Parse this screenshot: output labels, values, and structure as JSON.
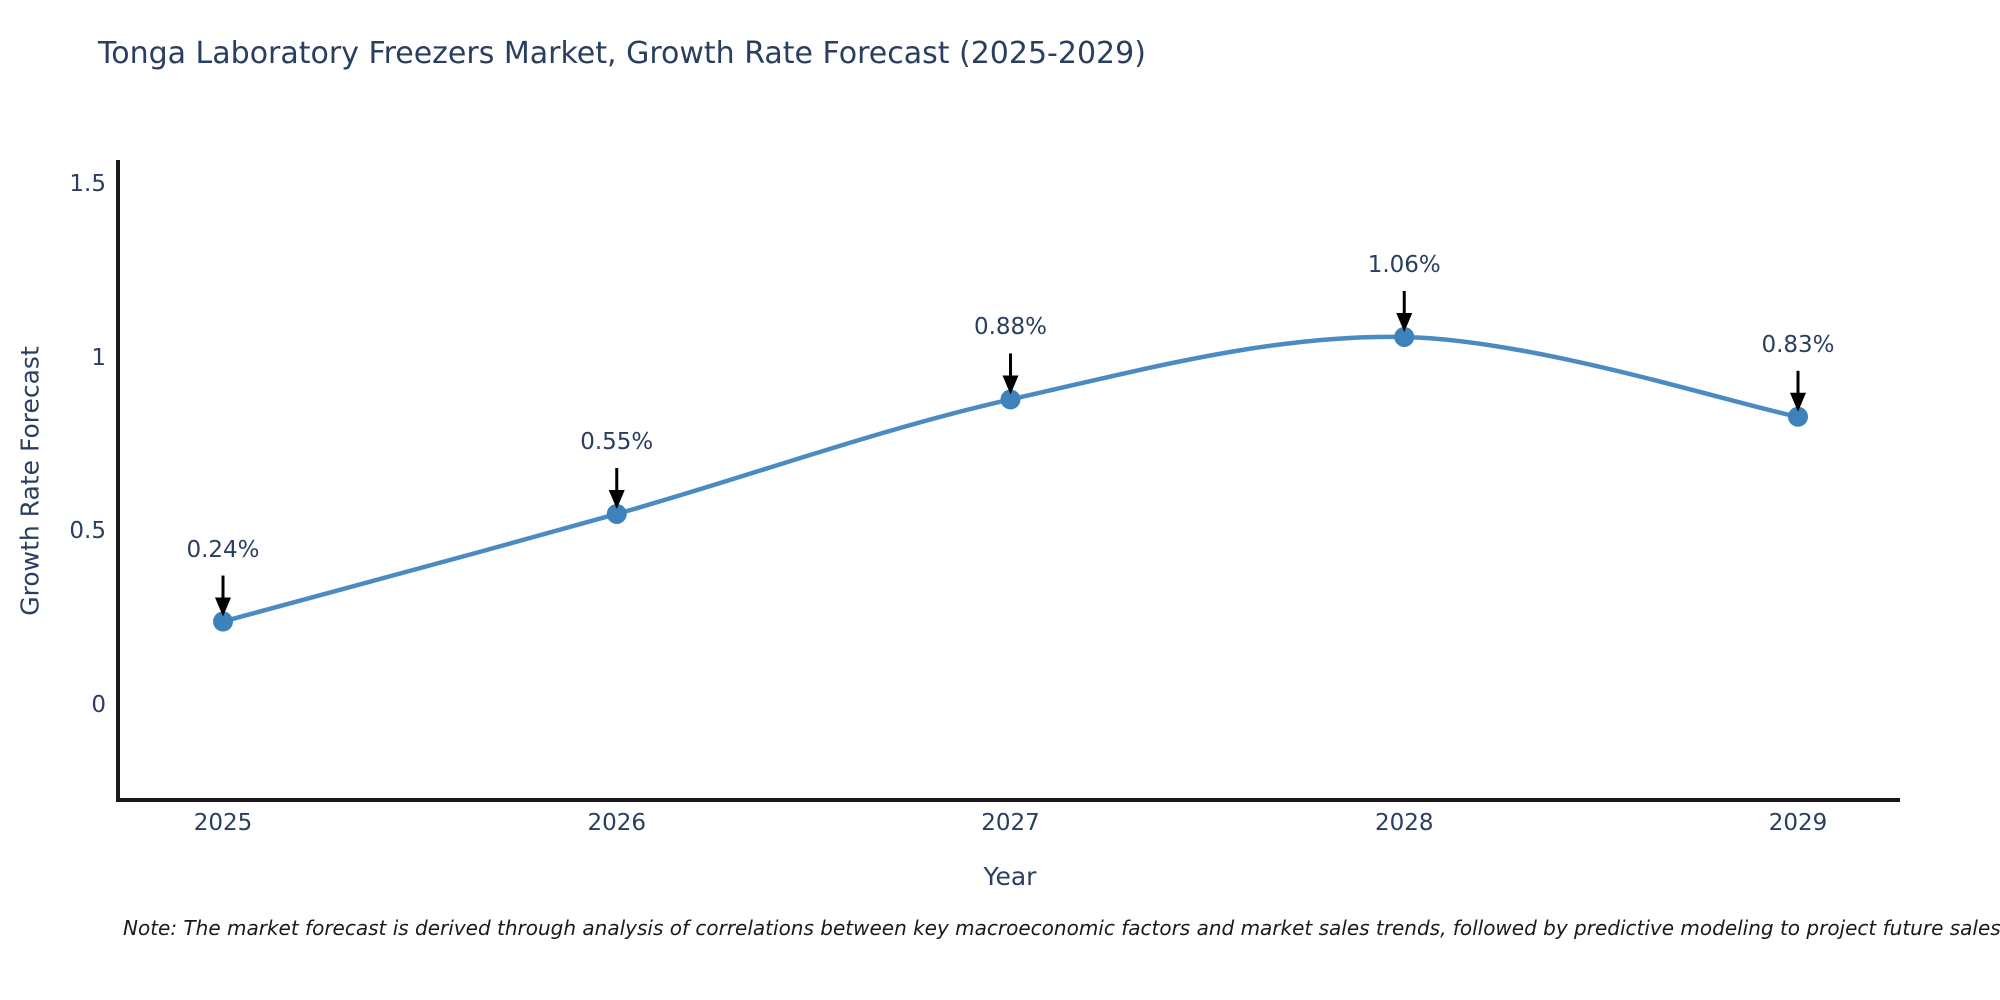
{
  "chart_data": {
    "type": "line",
    "title": "Tonga Laboratory Freezers Market, Growth Rate Forecast (2025-2029)",
    "xlabel": "Year",
    "ylabel": "Growth Rate Forecast",
    "categories": [
      "2025",
      "2026",
      "2027",
      "2028",
      "2029"
    ],
    "series": [
      {
        "name": "Growth Rate Forecast",
        "values": [
          0.24,
          0.55,
          0.88,
          1.06,
          0.83
        ],
        "point_labels": [
          "0.24%",
          "0.55%",
          "0.88%",
          "1.06%",
          "0.83%"
        ]
      }
    ],
    "ytick_values": [
      0,
      0.5,
      1,
      1.5
    ],
    "ytick_labels": [
      "0",
      "0.5",
      "1",
      "1.5"
    ],
    "ylim": [
      -0.28,
      1.57
    ],
    "line_shape": "spline",
    "grid": false,
    "legend_position": "none",
    "colors": {
      "line": "#4a8bc2",
      "marker": "#3d82ba",
      "axis": "#1a1a1a",
      "text": "#2a3f5f",
      "annotation_arrow": "#000000",
      "background": "#ffffff"
    }
  },
  "footnote": "Note: The market forecast is derived through analysis of correlations between key macroeconomic factors and market sales trends, followed by predictive modeling to project future sales"
}
